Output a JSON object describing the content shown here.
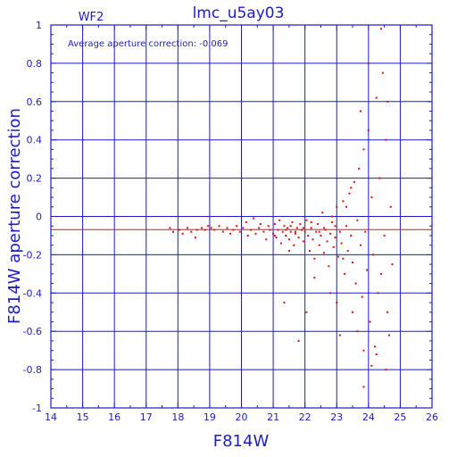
{
  "chart_data": {
    "type": "scatter",
    "title": "lmc_u5ay03",
    "panel_label": "WF2",
    "xlabel": "F814W",
    "ylabel": "F814W aperture correction",
    "xlim": [
      14,
      26
    ],
    "ylim": [
      -1,
      1
    ],
    "xticks": [
      "14",
      "15",
      "16",
      "17",
      "18",
      "19",
      "20",
      "21",
      "22",
      "23",
      "24",
      "25",
      "26"
    ],
    "yticks": [
      "-1",
      "-0.8",
      "-0.6",
      "-0.4",
      "-0.2",
      "0",
      "0.2",
      "0.4",
      "0.6",
      "0.8",
      "1"
    ],
    "grid": true,
    "annotation": "Average aperture correction:  -0.069",
    "average_value": -0.069,
    "colors": {
      "axes": "#1c1cc8",
      "points": "#e01010",
      "average_line": "#e01010"
    },
    "series": [
      {
        "values": [
          [
            17.75,
            -0.06
          ],
          [
            17.85,
            -0.08
          ],
          [
            18.05,
            -0.07
          ],
          [
            18.15,
            -0.09
          ],
          [
            18.3,
            -0.06
          ],
          [
            18.42,
            -0.08
          ],
          [
            18.55,
            -0.11
          ],
          [
            18.6,
            -0.07
          ],
          [
            18.75,
            -0.06
          ],
          [
            18.85,
            -0.07
          ],
          [
            18.95,
            -0.05
          ],
          [
            19.05,
            -0.06
          ],
          [
            19.15,
            -0.07
          ],
          [
            19.3,
            -0.05
          ],
          [
            19.42,
            -0.08
          ],
          [
            19.55,
            -0.06
          ],
          [
            19.65,
            -0.09
          ],
          [
            19.75,
            -0.07
          ],
          [
            19.85,
            -0.05
          ],
          [
            19.95,
            -0.08
          ],
          [
            20.05,
            -0.06
          ],
          [
            20.15,
            -0.03
          ],
          [
            20.2,
            -0.1
          ],
          [
            20.3,
            -0.07
          ],
          [
            20.38,
            -0.01
          ],
          [
            20.45,
            -0.09
          ],
          [
            20.55,
            -0.06
          ],
          [
            20.6,
            -0.04
          ],
          [
            20.7,
            -0.08
          ],
          [
            20.78,
            -0.12
          ],
          [
            20.85,
            -0.05
          ],
          [
            20.9,
            -0.07
          ],
          [
            21.0,
            -0.09
          ],
          [
            21.05,
            -0.04
          ],
          [
            21.1,
            -0.11
          ],
          [
            21.15,
            -0.07
          ],
          [
            21.2,
            -0.02
          ],
          [
            21.25,
            -0.14
          ],
          [
            21.3,
            -0.08
          ],
          [
            21.35,
            -0.05
          ],
          [
            21.4,
            -0.1
          ],
          [
            21.45,
            -0.06
          ],
          [
            21.5,
            -0.12
          ],
          [
            21.55,
            -0.08
          ],
          [
            21.6,
            -0.03
          ],
          [
            21.65,
            -0.15
          ],
          [
            21.7,
            -0.09
          ],
          [
            21.75,
            -0.06
          ],
          [
            21.8,
            -0.11
          ],
          [
            21.85,
            -0.04
          ],
          [
            21.9,
            -0.07
          ],
          [
            21.95,
            -0.13
          ],
          [
            22.0,
            -0.08
          ],
          [
            22.05,
            -0.02
          ],
          [
            22.1,
            -0.1
          ],
          [
            22.15,
            -0.18
          ],
          [
            22.2,
            -0.06
          ],
          [
            22.25,
            -0.12
          ],
          [
            22.3,
            -0.22
          ],
          [
            22.35,
            -0.08
          ],
          [
            22.4,
            -0.04
          ],
          [
            22.45,
            -0.15
          ],
          [
            22.5,
            -0.1
          ],
          [
            22.55,
            0.02
          ],
          [
            22.6,
            -0.19
          ],
          [
            22.65,
            -0.07
          ],
          [
            22.7,
            -0.13
          ],
          [
            22.75,
            -0.26
          ],
          [
            22.8,
            -0.09
          ],
          [
            22.85,
            -0.03
          ],
          [
            22.9,
            -0.16
          ],
          [
            22.95,
            -0.11
          ],
          [
            23.0,
            0.05
          ],
          [
            23.05,
            -0.21
          ],
          [
            23.1,
            -0.08
          ],
          [
            23.15,
            -0.14
          ],
          [
            23.2,
            0.08
          ],
          [
            23.25,
            -0.3
          ],
          [
            23.3,
            -0.05
          ],
          [
            23.35,
            -0.18
          ],
          [
            23.4,
            0.12
          ],
          [
            23.45,
            -0.1
          ],
          [
            23.5,
            -0.24
          ],
          [
            23.55,
            0.18
          ],
          [
            23.6,
            -0.35
          ],
          [
            23.65,
            -0.02
          ],
          [
            23.7,
            0.25
          ],
          [
            23.75,
            -0.15
          ],
          [
            23.8,
            -0.42
          ],
          [
            23.85,
            0.35
          ],
          [
            23.9,
            -0.08
          ],
          [
            23.95,
            -0.28
          ],
          [
            24.0,
            0.45
          ],
          [
            24.05,
            -0.55
          ],
          [
            24.1,
            0.1
          ],
          [
            24.15,
            -0.2
          ],
          [
            24.2,
            -0.68
          ],
          [
            24.25,
            0.62
          ],
          [
            24.3,
            -0.4
          ],
          [
            24.35,
            0.2
          ],
          [
            24.4,
            -0.3
          ],
          [
            24.45,
            0.75
          ],
          [
            24.5,
            -0.1
          ],
          [
            24.55,
            0.4
          ],
          [
            24.6,
            -0.5
          ],
          [
            24.65,
            -0.62
          ],
          [
            24.7,
            0.05
          ],
          [
            24.75,
            -0.25
          ],
          [
            21.05,
            -0.1
          ],
          [
            21.5,
            -0.18
          ],
          [
            22.3,
            -0.32
          ],
          [
            22.8,
            -0.4
          ],
          [
            23.0,
            -0.45
          ],
          [
            23.2,
            -0.22
          ],
          [
            23.3,
            0.05
          ],
          [
            23.45,
            0.15
          ],
          [
            23.5,
            -0.5
          ],
          [
            23.65,
            -0.6
          ],
          [
            23.75,
            0.55
          ],
          [
            23.85,
            -0.7
          ],
          [
            24.0,
            0.8
          ],
          [
            24.1,
            -0.78
          ],
          [
            24.25,
            -0.72
          ],
          [
            24.4,
            0.98
          ],
          [
            24.55,
            -0.8
          ],
          [
            24.6,
            0.6
          ],
          [
            23.85,
            -0.89
          ],
          [
            21.35,
            -0.45
          ],
          [
            22.05,
            -0.5
          ],
          [
            21.8,
            -0.65
          ],
          [
            23.1,
            -0.62
          ],
          [
            22.85,
            0.0
          ],
          [
            22.95,
            -0.05
          ],
          [
            22.6,
            -0.06
          ],
          [
            22.45,
            -0.08
          ],
          [
            22.2,
            -0.03
          ],
          [
            21.95,
            -0.06
          ],
          [
            21.7,
            -0.08
          ],
          [
            21.55,
            -0.05
          ],
          [
            21.4,
            -0.07
          ]
        ]
      }
    ]
  }
}
